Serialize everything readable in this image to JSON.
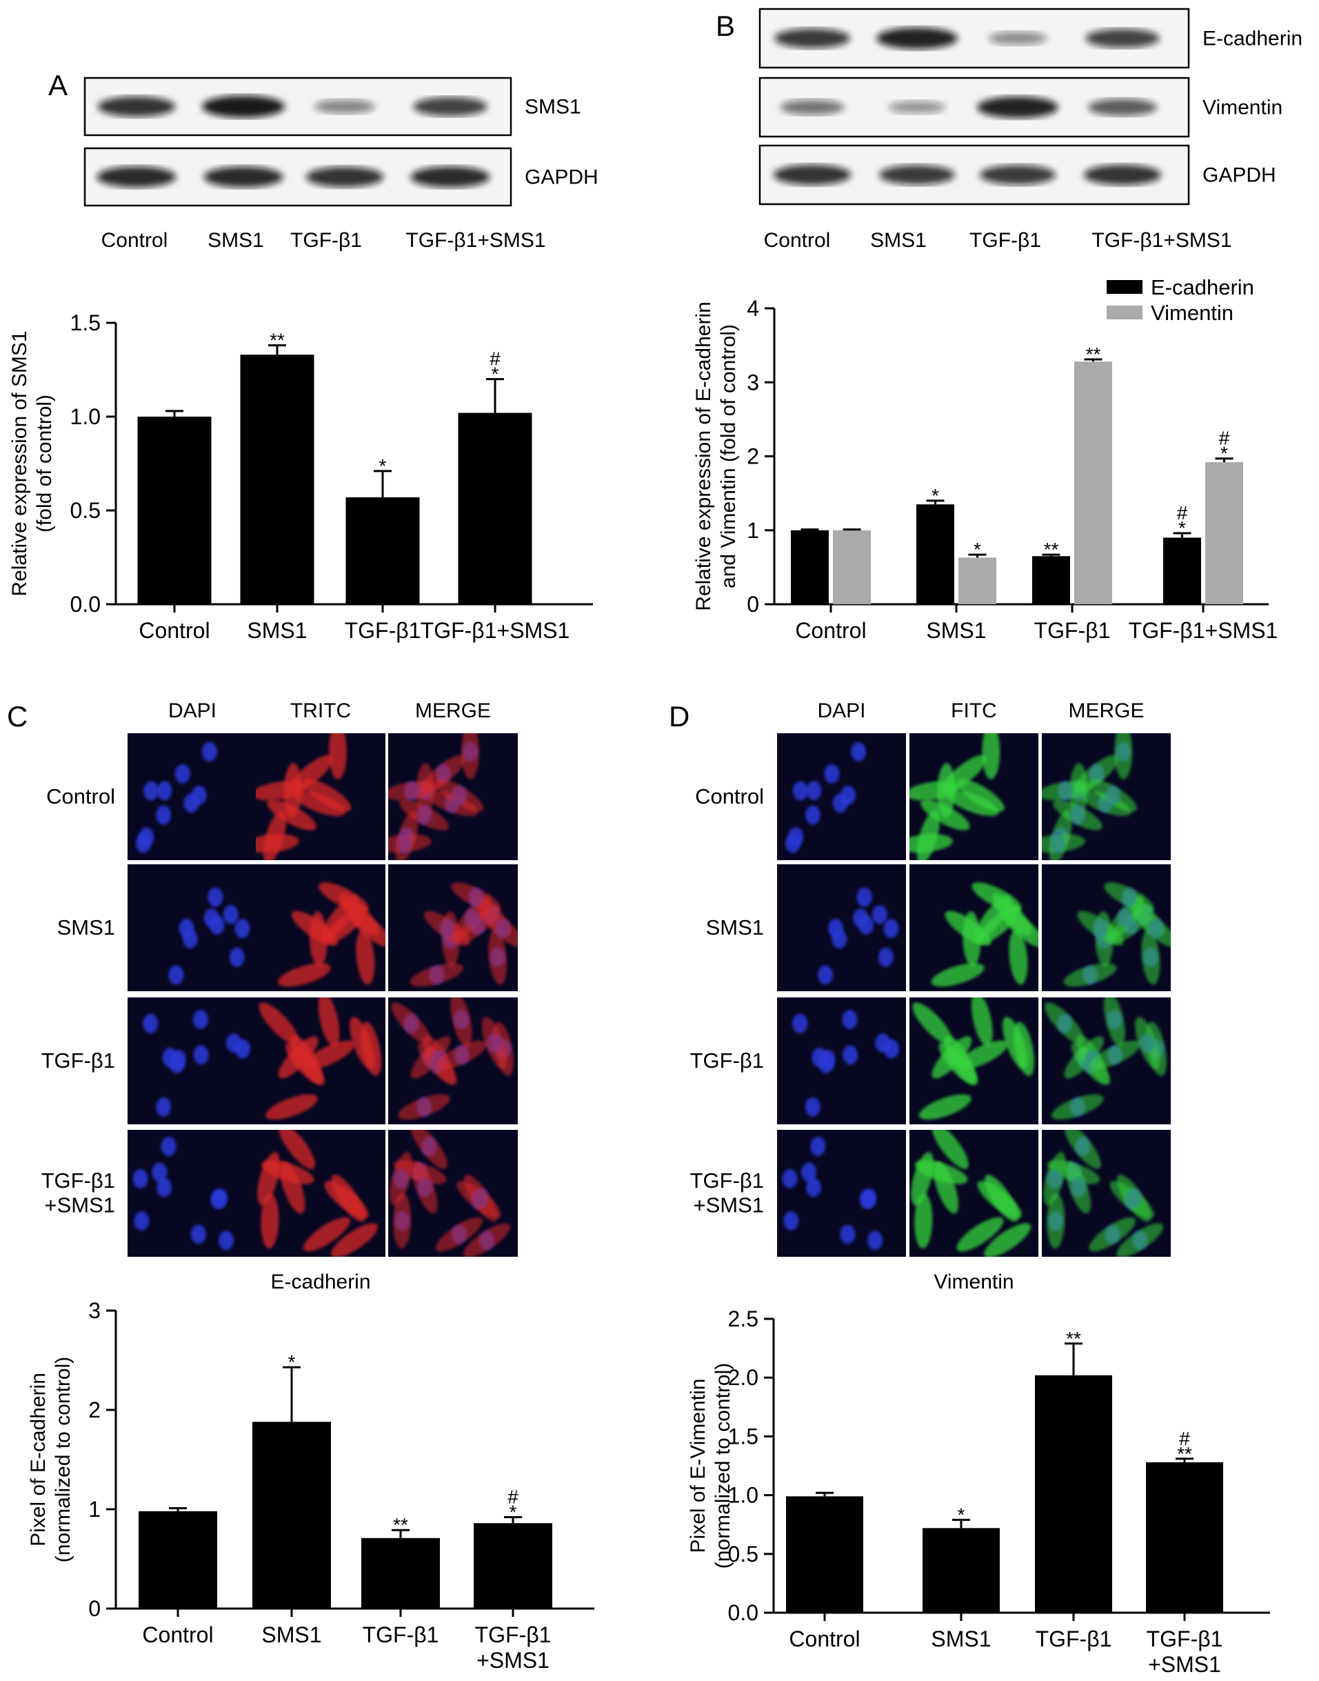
{
  "panel_letters": [
    "A",
    "B",
    "C",
    "D"
  ],
  "colors": {
    "ink": "#000000",
    "vimentin_bar": "#aaaaaa",
    "dapi": "#2a3ad8",
    "tritc": "#d92a2a",
    "fitc": "#36d43c",
    "micrograph_bg": "#070722"
  },
  "blot_A": {
    "rows": [
      {
        "label": "SMS1",
        "intensities": [
          0.85,
          1.0,
          0.35,
          0.75
        ]
      },
      {
        "label": "GAPDH",
        "intensities": [
          0.9,
          0.9,
          0.85,
          0.9
        ]
      }
    ],
    "lanes": [
      "Control",
      "SMS1",
      "TGF-β1",
      "TGF-β1+SMS1"
    ]
  },
  "blot_B": {
    "rows": [
      {
        "label": "E-cadherin",
        "intensities": [
          0.8,
          0.95,
          0.3,
          0.75
        ]
      },
      {
        "label": "Vimentin",
        "intensities": [
          0.45,
          0.25,
          0.95,
          0.6
        ]
      },
      {
        "label": "GAPDH",
        "intensities": [
          0.85,
          0.8,
          0.8,
          0.85
        ]
      }
    ],
    "lanes": [
      "Control",
      "SMS1",
      "TGF-β1",
      "TGF-β1+SMS1"
    ]
  },
  "micro_C": {
    "columns": [
      "DAPI",
      "TRITC",
      "MERGE"
    ],
    "rows": [
      "Control",
      "SMS1",
      "TGF-β1",
      "TGF-β1\n+SMS1"
    ],
    "caption": "E-cadherin"
  },
  "micro_D": {
    "columns": [
      "DAPI",
      "FITC",
      "MERGE"
    ],
    "rows": [
      "Control",
      "SMS1",
      "TGF-β1",
      "TGF-β1\n+SMS1"
    ],
    "caption": "Vimentin"
  },
  "chart_data": [
    {
      "id": "A",
      "type": "bar",
      "categories": [
        "Control",
        "SMS1",
        "TGF-β1",
        "TGF-β1+SMS1"
      ],
      "series": [
        {
          "values": [
            1.0,
            1.33,
            0.57,
            1.02
          ],
          "errors": [
            0.03,
            0.05,
            0.14,
            0.18
          ],
          "color": "#000000"
        }
      ],
      "annotations": [
        [
          ""
        ],
        [
          "**"
        ],
        [
          "*"
        ],
        [
          "#",
          "*"
        ]
      ],
      "ylabel": [
        "Relative expression of SMS1",
        "(fold of control)"
      ],
      "ylim": [
        0,
        1.5
      ],
      "yticks": [
        "0.0",
        "0.5",
        "1.0",
        "1.5"
      ]
    },
    {
      "id": "B",
      "type": "bar",
      "categories": [
        "Control",
        "SMS1",
        "TGF-β1",
        "TGF-β1+SMS1"
      ],
      "series": [
        {
          "name": "E-cadherin",
          "values": [
            1.0,
            1.35,
            0.65,
            0.9
          ],
          "errors": [
            0.01,
            0.05,
            0.02,
            0.06
          ],
          "color": "#000000"
        },
        {
          "name": "Vimentin",
          "values": [
            1.0,
            0.63,
            3.28,
            1.92
          ],
          "errors": [
            0.01,
            0.04,
            0.03,
            0.05
          ],
          "color": "#aaaaaa"
        }
      ],
      "annotations": [
        [
          [
            ""
          ],
          [
            ""
          ]
        ],
        [
          [
            "*"
          ],
          [
            "*"
          ]
        ],
        [
          [
            "**"
          ],
          [
            "**"
          ]
        ],
        [
          [
            "#",
            "*"
          ],
          [
            "#",
            "*"
          ]
        ]
      ],
      "legend": "top-right",
      "ylabel": [
        "Relative expression of E-cadherin",
        "and Vimentin (fold of control)"
      ],
      "ylim": [
        0,
        4
      ],
      "yticks": [
        "0",
        "1",
        "2",
        "3",
        "4"
      ]
    },
    {
      "id": "C",
      "type": "bar",
      "categories": [
        "Control",
        "SMS1",
        "TGF-β1",
        "TGF-β1\n+SMS1"
      ],
      "series": [
        {
          "values": [
            0.98,
            1.88,
            0.71,
            0.86
          ],
          "errors": [
            0.03,
            0.55,
            0.08,
            0.06
          ],
          "color": "#000000"
        }
      ],
      "annotations": [
        [
          ""
        ],
        [
          "*"
        ],
        [
          "**"
        ],
        [
          "#",
          "*"
        ]
      ],
      "ylabel": [
        "Pixel of E-cadherin",
        "(normalized to control)"
      ],
      "ylim": [
        0,
        3
      ],
      "yticks": [
        "0",
        "1",
        "2",
        "3"
      ]
    },
    {
      "id": "D",
      "type": "bar",
      "categories": [
        "Control",
        "SMS1",
        "TGF-β1",
        "TGF-β1\n+SMS1"
      ],
      "series": [
        {
          "values": [
            0.99,
            0.72,
            2.02,
            1.28
          ],
          "errors": [
            0.03,
            0.07,
            0.27,
            0.03
          ],
          "color": "#000000"
        }
      ],
      "annotations": [
        [
          ""
        ],
        [
          "*"
        ],
        [
          "**"
        ],
        [
          "#",
          "**"
        ]
      ],
      "ylabel": [
        "Pixel of E-Vimentin",
        "(normalized to control)"
      ],
      "ylim": [
        0,
        2.5
      ],
      "yticks": [
        "0.0",
        "0.5",
        "1.0",
        "1.5",
        "2.0",
        "2.5"
      ]
    }
  ]
}
